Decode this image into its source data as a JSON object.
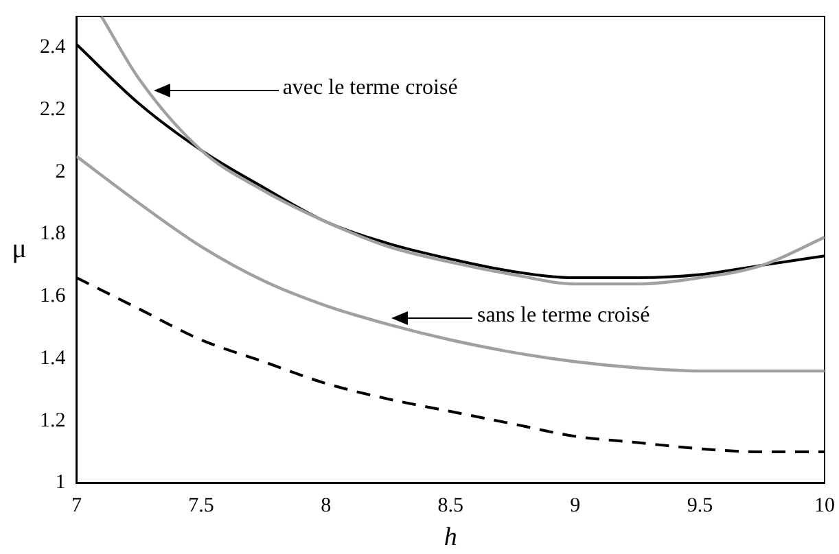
{
  "chart_data": {
    "type": "line",
    "xlabel": "h",
    "ylabel": "μ",
    "x": [
      7,
      7.25,
      7.5,
      7.75,
      8,
      8.25,
      8.5,
      8.75,
      9,
      9.25,
      9.5,
      9.75,
      10
    ],
    "series": [
      {
        "color": "#a0a0a0",
        "x": [
          7.1,
          7.25,
          7.5,
          7.75,
          8,
          8.25,
          8.5,
          8.75,
          9,
          9.25,
          9.5,
          9.75,
          10
        ],
        "values": [
          2.5,
          2.3,
          2.07,
          1.94,
          1.84,
          1.76,
          1.71,
          1.67,
          1.64,
          1.64,
          1.66,
          1.7,
          1.79
        ]
      },
      {
        "color": "#000000",
        "values": [
          2.41,
          2.22,
          2.07,
          1.95,
          1.84,
          1.77,
          1.72,
          1.68,
          1.66,
          1.66,
          1.67,
          1.7,
          1.73
        ]
      },
      {
        "color": "#a0a0a0",
        "values": [
          2.05,
          1.9,
          1.76,
          1.65,
          1.57,
          1.51,
          1.46,
          1.42,
          1.39,
          1.37,
          1.36,
          1.36,
          1.36
        ]
      },
      {
        "color": "#000000",
        "line_style": "dashed",
        "values": [
          1.66,
          1.56,
          1.46,
          1.39,
          1.32,
          1.27,
          1.23,
          1.19,
          1.15,
          1.13,
          1.11,
          1.1,
          1.1
        ]
      }
    ],
    "xlim": [
      7,
      10
    ],
    "xticks": [
      7,
      7.5,
      8,
      8.5,
      9,
      9.5,
      10
    ],
    "ylim": [
      1,
      2.5
    ],
    "yticks": [
      1,
      1.2,
      1.4,
      1.6,
      1.8,
      2,
      2.2,
      2.4
    ],
    "grid": false,
    "legend": false,
    "marker": "none",
    "line_style": "solid",
    "annotations": [
      "avec le terme croisé",
      "sans le terme croisé"
    ]
  }
}
